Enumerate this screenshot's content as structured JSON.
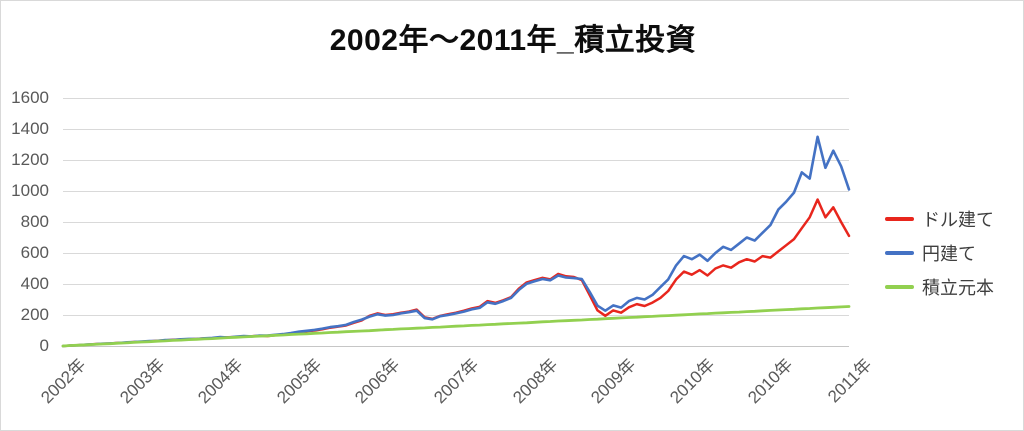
{
  "chart_data": {
    "type": "line",
    "title": "2002年～2011年_積立投資",
    "x_tick_labels": [
      "2002年",
      "2003年",
      "2004年",
      "2005年",
      "2006年",
      "2007年",
      "2008年",
      "2009年",
      "2010年",
      "2010年",
      "2011年"
    ],
    "y_tick_labels": [
      "1600",
      "1400",
      "1200",
      "1000",
      "800",
      "600",
      "400",
      "200",
      "0"
    ],
    "ylim": [
      0,
      1600
    ],
    "grid": true,
    "legend_position": "right",
    "grid_color": "#d9d9d9",
    "axis_text_color": "#595959",
    "series": [
      {
        "name": "ドル建て",
        "color": "#e8261d",
        "values": [
          0,
          3,
          6,
          8,
          12,
          14,
          16,
          20,
          22,
          26,
          28,
          30,
          34,
          36,
          40,
          42,
          44,
          46,
          49,
          50,
          55,
          56,
          58,
          62,
          63,
          66,
          64,
          69,
          74,
          80,
          88,
          95,
          100,
          108,
          118,
          125,
          132,
          150,
          165,
          195,
          210,
          200,
          205,
          215,
          222,
          235,
          185,
          175,
          195,
          205,
          215,
          228,
          242,
          252,
          290,
          278,
          295,
          315,
          370,
          410,
          425,
          440,
          430,
          465,
          450,
          445,
          425,
          330,
          230,
          195,
          230,
          215,
          250,
          270,
          258,
          280,
          310,
          355,
          430,
          480,
          460,
          490,
          455,
          500,
          520,
          505,
          540,
          560,
          545,
          580,
          570,
          610,
          650,
          690,
          760,
          830,
          945,
          830,
          895,
          800,
          710
        ]
      },
      {
        "name": "円建て",
        "color": "#4472c4",
        "values": [
          0,
          3,
          5,
          9,
          11,
          15,
          17,
          19,
          23,
          25,
          29,
          32,
          33,
          38,
          39,
          43,
          46,
          45,
          50,
          52,
          58,
          55,
          60,
          64,
          62,
          68,
          67,
          72,
          77,
          84,
          92,
          98,
          104,
          112,
          122,
          128,
          136,
          155,
          170,
          190,
          205,
          196,
          200,
          210,
          218,
          228,
          180,
          172,
          192,
          200,
          210,
          222,
          236,
          246,
          282,
          272,
          290,
          310,
          362,
          402,
          418,
          432,
          424,
          455,
          442,
          438,
          432,
          350,
          260,
          228,
          262,
          248,
          290,
          310,
          300,
          330,
          380,
          430,
          520,
          580,
          560,
          590,
          550,
          600,
          640,
          620,
          660,
          700,
          680,
          730,
          780,
          880,
          930,
          990,
          1120,
          1080,
          1350,
          1150,
          1260,
          1160,
          1010
        ]
      },
      {
        "name": "積立元本",
        "color": "#92d050",
        "values": [
          0,
          3,
          5,
          8,
          10,
          13,
          15,
          18,
          20,
          23,
          26,
          28,
          31,
          33,
          36,
          38,
          41,
          43,
          46,
          48,
          51,
          54,
          56,
          59,
          61,
          64,
          66,
          69,
          71,
          74,
          77,
          79,
          82,
          84,
          87,
          89,
          92,
          94,
          97,
          99,
          102,
          105,
          107,
          110,
          112,
          115,
          117,
          120,
          122,
          125,
          128,
          130,
          133,
          135,
          138,
          140,
          143,
          145,
          148,
          150,
          153,
          156,
          158,
          161,
          163,
          166,
          168,
          171,
          173,
          176,
          179,
          181,
          184,
          186,
          189,
          191,
          194,
          196,
          199,
          201,
          204,
          207,
          209,
          212,
          214,
          217,
          219,
          222,
          224,
          227,
          230,
          232,
          235,
          237,
          240,
          242,
          245,
          247,
          250,
          252,
          255
        ]
      }
    ]
  }
}
